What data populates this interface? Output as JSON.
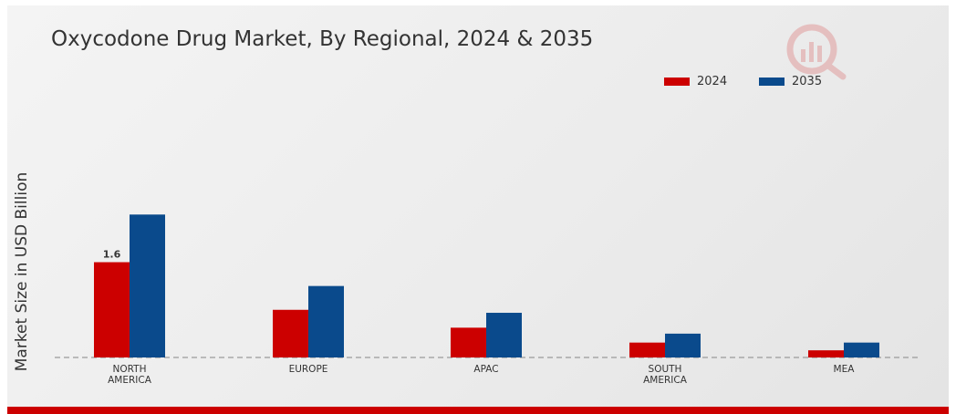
{
  "chart_data": {
    "type": "bar",
    "title": "Oxycodone Drug Market, By Regional, 2024 & 2035",
    "ylabel": "Market Size in USD Billion",
    "xlabel": "",
    "categories": [
      "NORTH AMERICA",
      "EUROPE",
      "APAC",
      "SOUTH AMERICA",
      "MEA"
    ],
    "category_lines": [
      [
        "NORTH",
        "AMERICA"
      ],
      [
        "EUROPE"
      ],
      [
        "APAC"
      ],
      [
        "SOUTH",
        "AMERICA"
      ],
      [
        "MEA"
      ]
    ],
    "series": [
      {
        "name": "2024",
        "color": "#cc0000",
        "values": [
          1.6,
          0.8,
          0.5,
          0.25,
          0.12
        ]
      },
      {
        "name": "2035",
        "color": "#0a4a8c",
        "values": [
          2.4,
          1.2,
          0.75,
          0.4,
          0.25
        ]
      }
    ],
    "data_labels": [
      {
        "series": 0,
        "index": 0,
        "text": "1.6"
      }
    ],
    "ylim": [
      0,
      3.5
    ],
    "grid": false,
    "legend_position": "top-right"
  }
}
